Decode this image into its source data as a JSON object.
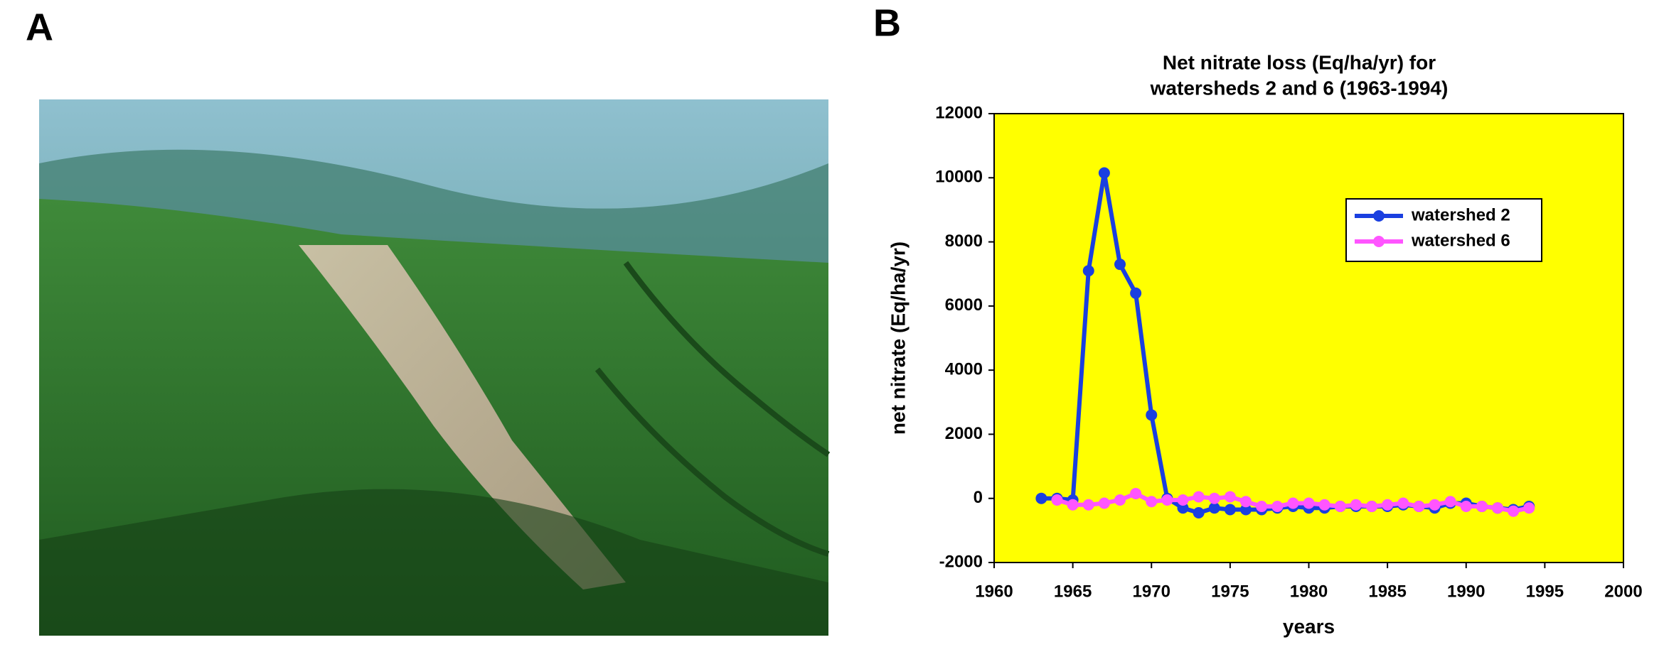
{
  "panels": {
    "a": "A",
    "b": "B"
  },
  "chart_data": {
    "type": "line",
    "title": [
      "Net nitrate loss (Eq/ha/yr) for",
      "watersheds 2 and 6 (1963-1994)"
    ],
    "xlabel": "years",
    "ylabel": "net nitrate (Eq/ha/yr)",
    "x": [
      1963,
      1964,
      1965,
      1966,
      1967,
      1968,
      1969,
      1970,
      1971,
      1972,
      1973,
      1974,
      1975,
      1976,
      1977,
      1978,
      1979,
      1980,
      1981,
      1982,
      1983,
      1984,
      1985,
      1986,
      1987,
      1988,
      1989,
      1990,
      1991,
      1992,
      1993,
      1994
    ],
    "series": [
      {
        "name": "watershed 2",
        "color": "#1a3fe0",
        "values": [
          0,
          0,
          -50,
          7100,
          10150,
          7300,
          6400,
          2600,
          0,
          -300,
          -450,
          -300,
          -350,
          -350,
          -350,
          -300,
          -250,
          -300,
          -300,
          -250,
          -250,
          -250,
          -250,
          -200,
          -250,
          -300,
          -150,
          -150,
          -250,
          -300,
          -350,
          -250
        ]
      },
      {
        "name": "watershed 6",
        "color": "#ff55ff",
        "values": [
          null,
          -50,
          -200,
          -200,
          -150,
          -50,
          150,
          -100,
          -50,
          -50,
          50,
          0,
          50,
          -100,
          -250,
          -250,
          -150,
          -150,
          -200,
          -250,
          -200,
          -250,
          -200,
          -150,
          -250,
          -200,
          -100,
          -250,
          -250,
          -300,
          -400,
          -300
        ]
      }
    ],
    "xlim": [
      1960,
      2000
    ],
    "xticks": [
      1960,
      1965,
      1970,
      1975,
      1980,
      1985,
      1990,
      1995,
      2000
    ],
    "ylim": [
      -2000,
      12000
    ],
    "yticks": [
      -2000,
      0,
      2000,
      4000,
      6000,
      8000,
      10000,
      12000
    ],
    "grid": false,
    "legend": "right",
    "plot_background": "#ffff00"
  }
}
